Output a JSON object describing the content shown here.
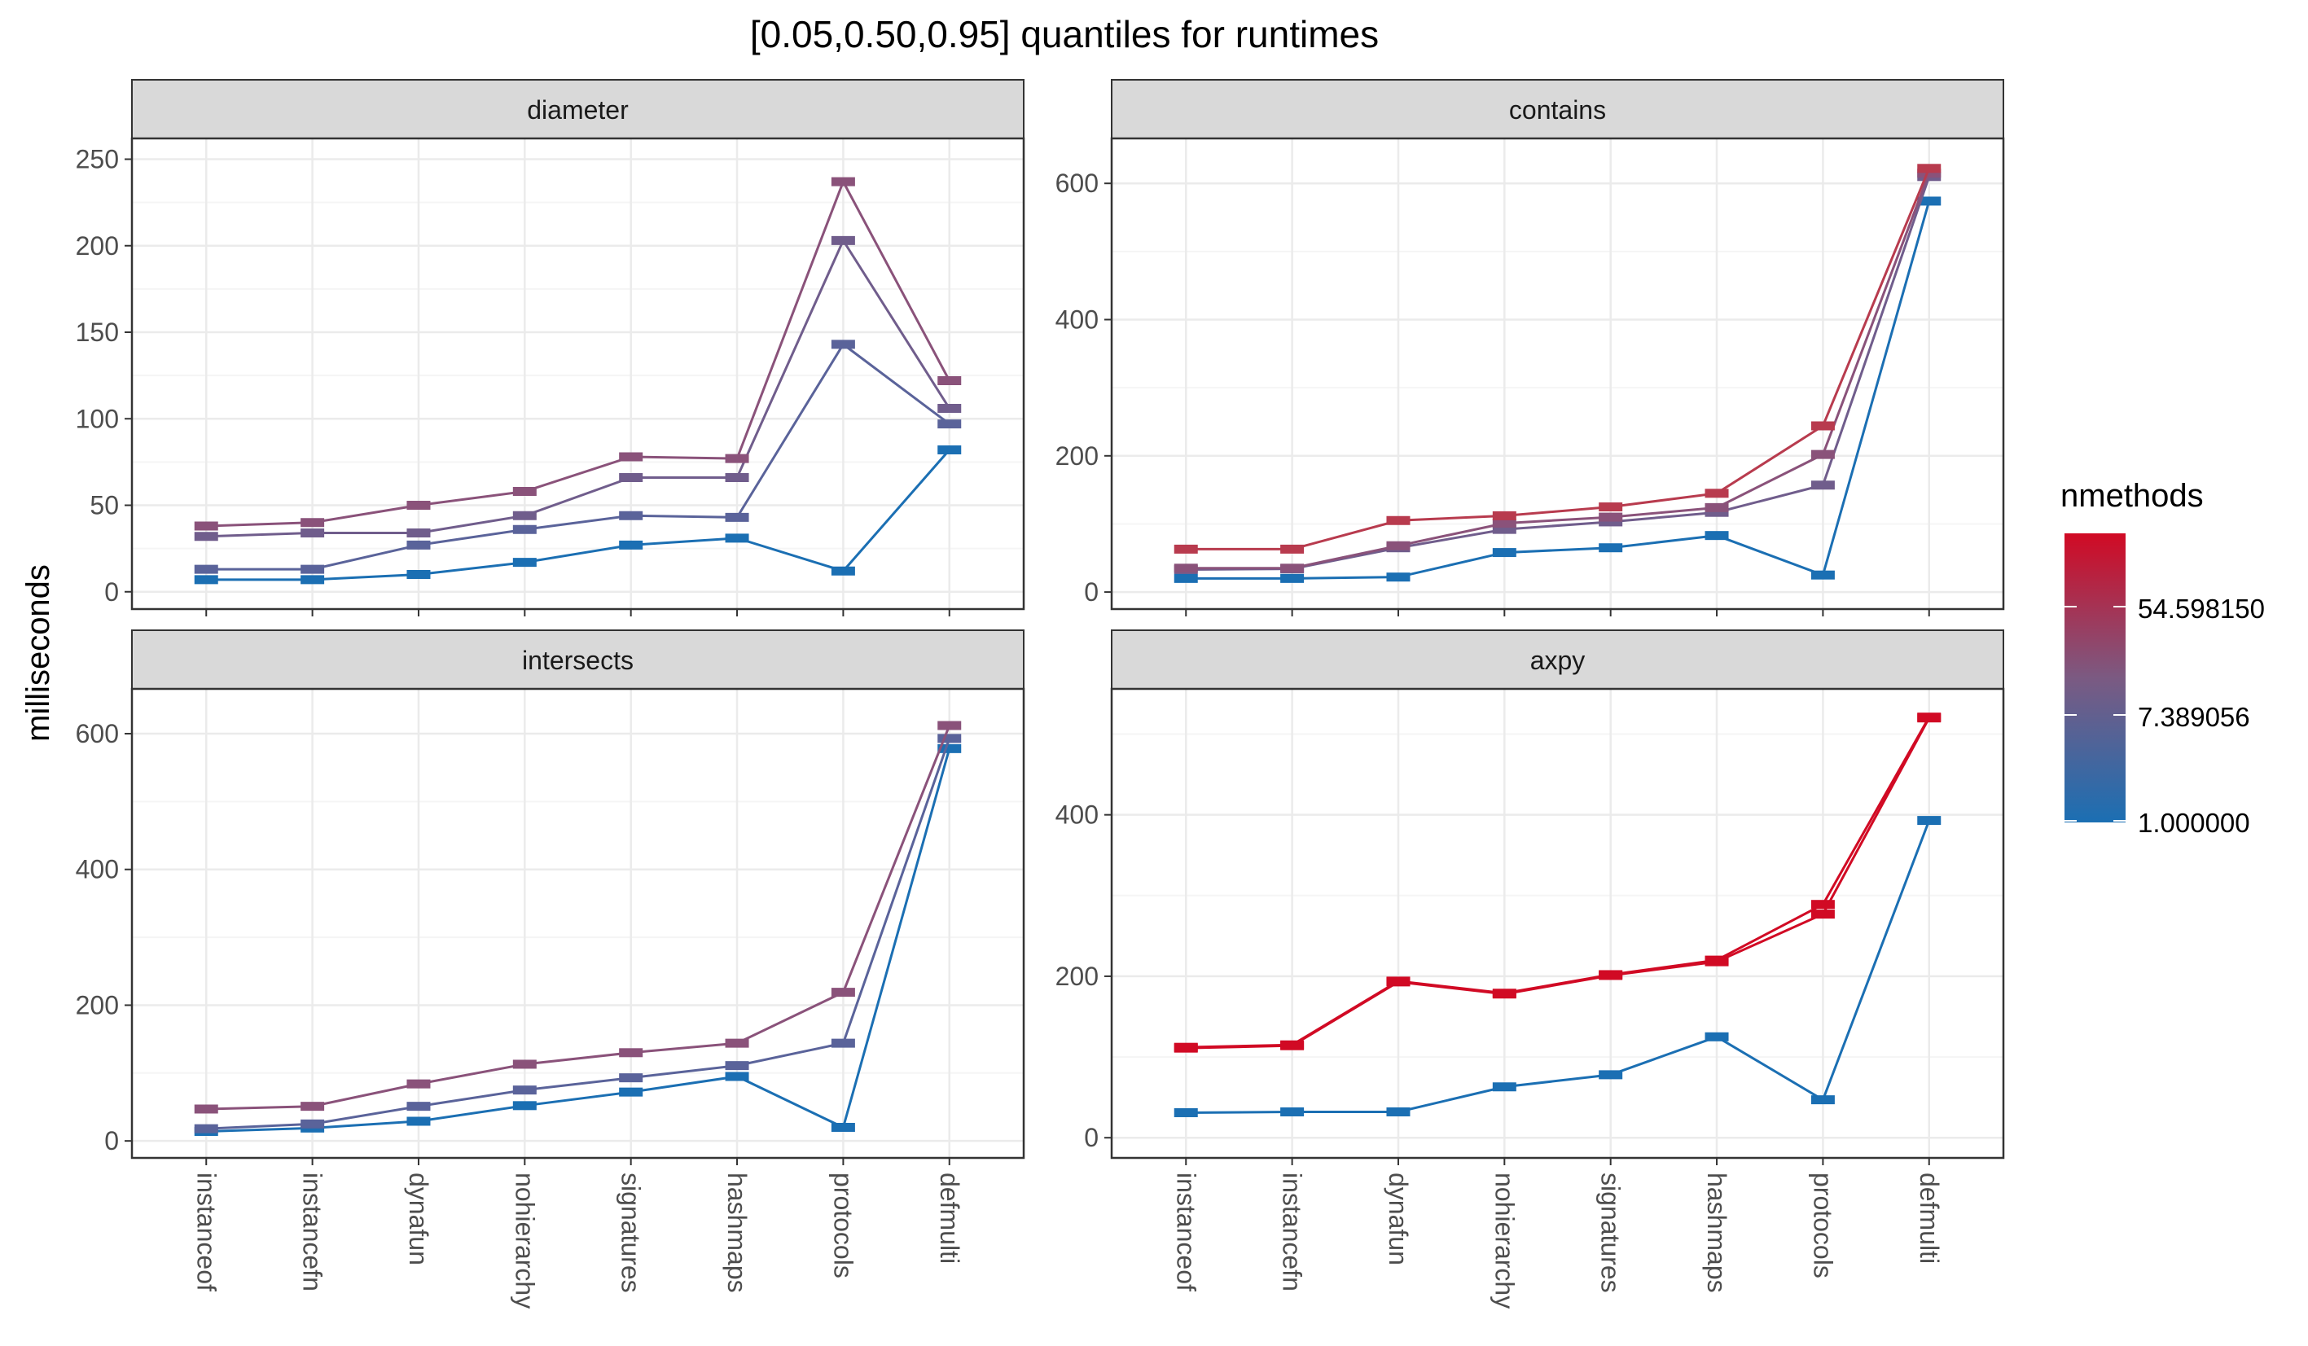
{
  "title": "[0.05,0.50,0.95] quantiles for runtimes",
  "y_axis_label": "milliseconds",
  "legend": {
    "title": "nmethods",
    "labels": [
      "54.598150",
      "7.389056",
      "1.000000"
    ],
    "gradient_low_color": "#1b6fb3",
    "gradient_mid_color": "#7b5a82",
    "gradient_high_color": "#d10a24"
  },
  "colors": {
    "strip_background": "#d9d9d9",
    "grid_major": "#ebebeb",
    "grid_minor": "#f5f5f5",
    "tick_label": "#4d4d4d",
    "n1": "#1b6fb3",
    "n3": "#5a639a",
    "n5": "#705d8c",
    "n10": "#8a527a",
    "n20": "#9c4a6c",
    "n50": "#b83b4e",
    "n100": "#d10a24"
  },
  "chart_data": [
    {
      "type": "line",
      "facet": "diameter",
      "categories": [
        "instanceof",
        "instancefn",
        "dynafun",
        "nohierarchy",
        "signatures",
        "hashmaps",
        "protocols",
        "defmulti"
      ],
      "ylim": [
        -10,
        262
      ],
      "yticks": [
        0,
        50,
        100,
        150,
        200,
        250
      ],
      "show_x_labels": false,
      "series": [
        {
          "color_key": "n1",
          "values": [
            7,
            7,
            10,
            17,
            27,
            31,
            12,
            82
          ]
        },
        {
          "color_key": "n3",
          "values": [
            13,
            13,
            27,
            36,
            44,
            43,
            143,
            97
          ]
        },
        {
          "color_key": "n5",
          "values": [
            32,
            34,
            34,
            44,
            66,
            66,
            203,
            106
          ]
        },
        {
          "color_key": "n10",
          "values": [
            38,
            40,
            50,
            58,
            78,
            77,
            237,
            122
          ]
        }
      ]
    },
    {
      "type": "line",
      "facet": "contains",
      "categories": [
        "instanceof",
        "instancefn",
        "dynafun",
        "nohierarchy",
        "signatures",
        "hashmaps",
        "protocols",
        "defmulti"
      ],
      "ylim": [
        -25,
        666
      ],
      "yticks": [
        0,
        200,
        400,
        600
      ],
      "show_x_labels": false,
      "series": [
        {
          "color_key": "n1",
          "values": [
            20,
            20,
            22,
            58,
            65,
            83,
            25,
            574
          ]
        },
        {
          "color_key": "n5",
          "values": [
            33,
            34,
            65,
            92,
            103,
            117,
            157,
            610
          ]
        },
        {
          "color_key": "n10",
          "values": [
            35,
            35,
            68,
            101,
            110,
            124,
            202,
            615
          ]
        },
        {
          "color_key": "n50",
          "values": [
            63,
            63,
            105,
            112,
            125,
            145,
            244,
            622
          ]
        }
      ]
    },
    {
      "type": "line",
      "facet": "intersects",
      "categories": [
        "instanceof",
        "instancefn",
        "dynafun",
        "nohierarchy",
        "signatures",
        "hashmaps",
        "protocols",
        "defmulti"
      ],
      "ylim": [
        -25,
        666
      ],
      "yticks": [
        0,
        200,
        400,
        600
      ],
      "show_x_labels": true,
      "series": [
        {
          "color_key": "n1",
          "values": [
            14,
            19,
            29,
            52,
            72,
            95,
            20,
            578
          ]
        },
        {
          "color_key": "n3",
          "values": [
            18,
            25,
            51,
            75,
            93,
            111,
            144,
            593
          ]
        },
        {
          "color_key": "n10",
          "values": [
            47,
            51,
            84,
            113,
            130,
            144,
            219,
            612
          ]
        }
      ]
    },
    {
      "type": "line",
      "facet": "axpy",
      "categories": [
        "instanceof",
        "instancefn",
        "dynafun",
        "nohierarchy",
        "signatures",
        "hashmaps",
        "protocols",
        "defmulti"
      ],
      "ylim": [
        -25,
        556
      ],
      "yticks": [
        0,
        200,
        400
      ],
      "show_x_labels": true,
      "series": [
        {
          "color_key": "n1",
          "values": [
            31,
            32,
            32,
            63,
            78,
            125,
            47,
            393
          ]
        },
        {
          "color_key": "n100",
          "values": [
            111,
            114,
            193,
            178,
            201,
            218,
            277,
            520
          ]
        },
        {
          "color_key": "n100",
          "values": [
            112,
            115,
            194,
            179,
            202,
            220,
            289,
            521
          ]
        }
      ]
    }
  ]
}
